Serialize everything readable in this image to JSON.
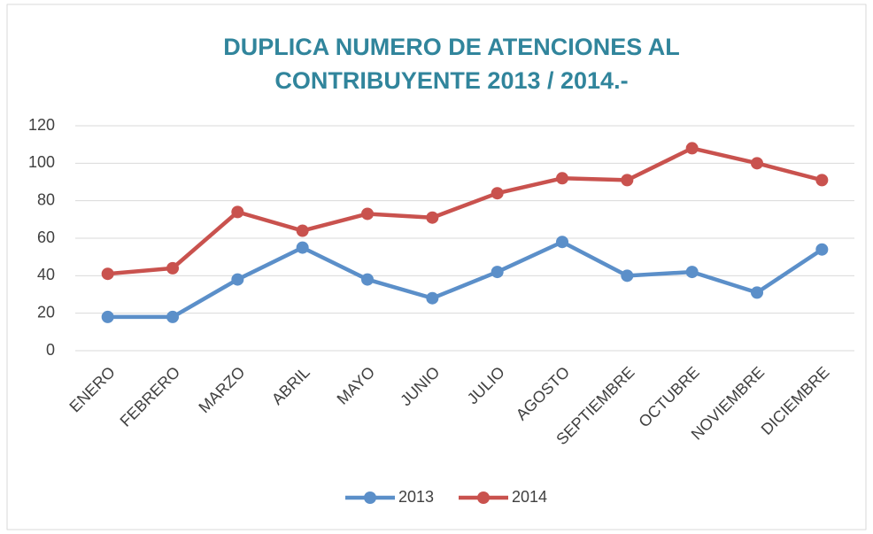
{
  "chart_data": {
    "type": "line",
    "title": "DUPLICA NUMERO DE ATENCIONES AL CONTRIBUYENTE 2013 / 2014.-",
    "categories": [
      "ENERO",
      "FEBRERO",
      "MARZO",
      "ABRIL",
      "MAYO",
      "JUNIO",
      "JULIO",
      "AGOSTO",
      "SEPTIEMBRE",
      "OCTUBRE",
      "NOVIEMBRE",
      "DICIEMBRE"
    ],
    "series": [
      {
        "name": "2013",
        "color": "#5b8fc9",
        "values": [
          18,
          18,
          38,
          55,
          38,
          28,
          42,
          58,
          40,
          42,
          31,
          54
        ]
      },
      {
        "name": "2014",
        "color": "#c9524e",
        "values": [
          41,
          44,
          74,
          64,
          73,
          71,
          84,
          92,
          91,
          108,
          100,
          91
        ]
      }
    ],
    "ylim": [
      0,
      120
    ],
    "yticks": [
      0,
      20,
      40,
      60,
      80,
      100,
      120
    ],
    "grid": true,
    "legend": "bottom"
  }
}
